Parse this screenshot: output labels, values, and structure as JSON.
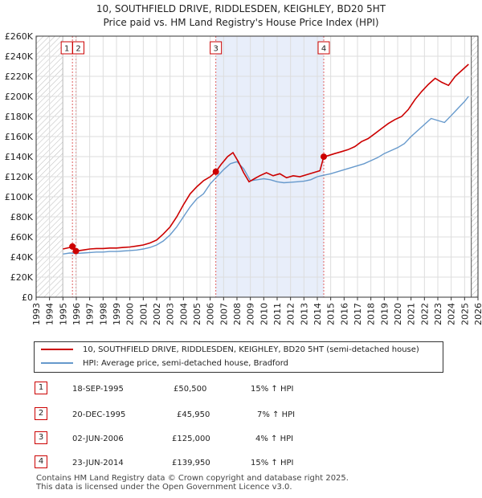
{
  "title": "10, SOUTHFIELD DRIVE, RIDDLESDEN, KEIGHLEY, BD20 5HT",
  "subtitle": "Price paid vs. HM Land Registry's House Price Index (HPI)",
  "colors": {
    "property": "#cc0000",
    "hpi": "#6699cc",
    "highlight": "#e8eefa",
    "hatch": "#bbbbbb"
  },
  "legend": {
    "property": "10, SOUTHFIELD DRIVE, RIDDLESDEN, KEIGHLEY, BD20 5HT (semi-detached house)",
    "hpi": "HPI: Average price, semi-detached house, Bradford"
  },
  "sales": [
    {
      "num": "1",
      "date": "18-SEP-1995",
      "price": "£50,500",
      "hpi": "15% ↑ HPI"
    },
    {
      "num": "2",
      "date": "20-DEC-1995",
      "price": "£45,950",
      "hpi": "7% ↑ HPI"
    },
    {
      "num": "3",
      "date": "02-JUN-2006",
      "price": "£125,000",
      "hpi": "4% ↑ HPI"
    },
    {
      "num": "4",
      "date": "23-JUN-2014",
      "price": "£139,950",
      "hpi": "15% ↑ HPI"
    }
  ],
  "footer": {
    "line1": "Contains HM Land Registry data © Crown copyright and database right 2025.",
    "line2": "This data is licensed under the Open Government Licence v3.0."
  },
  "chart_data": {
    "type": "line",
    "title": "10, SOUTHFIELD DRIVE, RIDDLESDEN, KEIGHLEY, BD20 5HT",
    "subtitle": "Price paid vs. HM Land Registry's House Price Index (HPI)",
    "xlabel": "",
    "ylabel": "",
    "xlim": [
      1993,
      2026
    ],
    "ylim": [
      0,
      260000
    ],
    "x_ticks": [
      "1993",
      "1994",
      "1995",
      "1996",
      "1997",
      "1998",
      "1999",
      "2000",
      "2001",
      "2002",
      "2003",
      "2004",
      "2005",
      "2006",
      "2007",
      "2008",
      "2009",
      "2010",
      "2011",
      "2012",
      "2013",
      "2014",
      "2015",
      "2016",
      "2017",
      "2018",
      "2019",
      "2020",
      "2021",
      "2022",
      "2023",
      "2024",
      "2025",
      "2026"
    ],
    "y_ticks": [
      "£0",
      "£20K",
      "£40K",
      "£60K",
      "£80K",
      "£100K",
      "£120K",
      "£140K",
      "£160K",
      "£180K",
      "£200K",
      "£220K",
      "£240K",
      "£260K"
    ],
    "y_tick_values": [
      0,
      20000,
      40000,
      60000,
      80000,
      100000,
      120000,
      140000,
      160000,
      180000,
      200000,
      220000,
      240000,
      260000
    ],
    "data_range": [
      1995.0,
      2025.5
    ],
    "highlight_span": [
      2006.42,
      2014.48
    ],
    "sale_markers": [
      {
        "label": "1",
        "x": 1995.71,
        "y": 50500
      },
      {
        "label": "2",
        "x": 1995.97,
        "y": 45950
      },
      {
        "label": "3",
        "x": 2006.42,
        "y": 125000
      },
      {
        "label": "4",
        "x": 2014.48,
        "y": 139950
      }
    ],
    "series": [
      {
        "name": "10, SOUTHFIELD DRIVE, RIDDLESDEN, KEIGHLEY, BD20 5HT (semi-detached house)",
        "x": [
          1995.0,
          1995.5,
          1995.71,
          1995.97,
          1996.5,
          1997,
          1997.5,
          1998,
          1998.5,
          1999,
          1999.5,
          2000,
          2000.5,
          2001,
          2001.5,
          2002,
          2002.5,
          2003,
          2003.5,
          2004,
          2004.5,
          2005,
          2005.5,
          2006,
          2006.42,
          2006.8,
          2007.3,
          2007.7,
          2008.1,
          2008.5,
          2008.9,
          2009.3,
          2009.7,
          2010.2,
          2010.7,
          2011.2,
          2011.7,
          2012.2,
          2012.7,
          2013.2,
          2013.7,
          2014.2,
          2014.48,
          2014.8,
          2015.3,
          2015.8,
          2016.3,
          2016.8,
          2017.3,
          2017.8,
          2018.3,
          2018.8,
          2019.3,
          2019.8,
          2020.3,
          2020.8,
          2021.3,
          2021.8,
          2022.3,
          2022.8,
          2023.3,
          2023.8,
          2024.3,
          2024.8,
          2025.3
        ],
        "values": [
          48000,
          49500,
          50500,
          45950,
          47000,
          48000,
          48500,
          48500,
          49000,
          49000,
          49500,
          50000,
          51000,
          52000,
          54000,
          57000,
          63000,
          70000,
          80000,
          92000,
          103000,
          110000,
          116000,
          120000,
          125000,
          132000,
          140000,
          144000,
          135000,
          124000,
          115000,
          118000,
          121000,
          124000,
          121000,
          123000,
          119000,
          121000,
          120000,
          122000,
          124000,
          126000,
          139950,
          141000,
          143000,
          145000,
          147000,
          150000,
          155000,
          158000,
          163000,
          168000,
          173000,
          177000,
          180000,
          187000,
          197000,
          205000,
          212000,
          218000,
          214000,
          211000,
          220000,
          226000,
          232000
        ]
      },
      {
        "name": "HPI: Average price, semi-detached house, Bradford",
        "x": [
          1995.0,
          1995.5,
          1996,
          1996.5,
          1997,
          1997.5,
          1998,
          1998.5,
          1999,
          1999.5,
          2000,
          2000.5,
          2001,
          2001.5,
          2002,
          2002.5,
          2003,
          2003.5,
          2004,
          2004.5,
          2005,
          2005.5,
          2006,
          2006.5,
          2007,
          2007.5,
          2008,
          2008.5,
          2009,
          2009.5,
          2010,
          2010.5,
          2011,
          2011.5,
          2012,
          2012.5,
          2013,
          2013.5,
          2014,
          2014.5,
          2015,
          2015.5,
          2016,
          2016.5,
          2017,
          2017.5,
          2018,
          2018.5,
          2019,
          2019.5,
          2020,
          2020.5,
          2021,
          2021.5,
          2022,
          2022.5,
          2023,
          2023.5,
          2024,
          2024.5,
          2025,
          2025.3
        ],
        "values": [
          43000,
          44000,
          43500,
          44000,
          44500,
          45000,
          45000,
          45500,
          45500,
          46000,
          46500,
          47000,
          48000,
          49500,
          52000,
          56000,
          62000,
          70000,
          80000,
          90000,
          98000,
          103000,
          113000,
          120000,
          127000,
          133000,
          135000,
          128000,
          116000,
          117000,
          118000,
          117000,
          115000,
          114000,
          114500,
          115000,
          115500,
          117000,
          120000,
          121500,
          123000,
          125000,
          127000,
          129000,
          131000,
          133000,
          136000,
          139000,
          143000,
          146000,
          149000,
          153000,
          160000,
          166000,
          172000,
          178000,
          176000,
          174000,
          181000,
          188000,
          195000,
          200000
        ]
      }
    ]
  }
}
